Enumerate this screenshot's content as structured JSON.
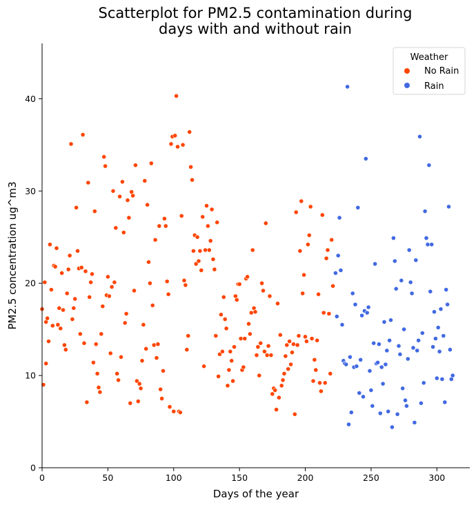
{
  "chart_data": {
    "type": "scatter",
    "title_lines": [
      "Scatterplot for PM2.5 contamination during",
      "days with and without rain"
    ],
    "xlabel": "Days of the year",
    "ylabel": "PM2.5 concentration ug^m3",
    "xlim": [
      0,
      325
    ],
    "ylim": [
      0,
      46
    ],
    "xticks": [
      0,
      50,
      100,
      150,
      200,
      250,
      300
    ],
    "yticks": [
      0,
      10,
      20,
      30,
      40
    ],
    "grid": false,
    "legend": {
      "title": "Weather",
      "placement": "top-right"
    },
    "series": [
      {
        "name": "No Rain",
        "color": "#FF4500",
        "points": [
          [
            0,
            17.2
          ],
          [
            1,
            9.0
          ],
          [
            2,
            20.1
          ],
          [
            3,
            11.3
          ],
          [
            3,
            15.8
          ],
          [
            4,
            16.2
          ],
          [
            5,
            13.7
          ],
          [
            6,
            24.2
          ],
          [
            7,
            19.3
          ],
          [
            8,
            15.4
          ],
          [
            9,
            21.9
          ],
          [
            10,
            21.8
          ],
          [
            11,
            23.8
          ],
          [
            12,
            15.5
          ],
          [
            13,
            17.3
          ],
          [
            14,
            15.1
          ],
          [
            15,
            21.1
          ],
          [
            16,
            17.1
          ],
          [
            17,
            13.3
          ],
          [
            18,
            12.8
          ],
          [
            19,
            18.9
          ],
          [
            20,
            21.5
          ],
          [
            21,
            23.0
          ],
          [
            22,
            35.1
          ],
          [
            23,
            16.1
          ],
          [
            24,
            17.3
          ],
          [
            25,
            18.3
          ],
          [
            26,
            28.2
          ],
          [
            27,
            23.5
          ],
          [
            28,
            21.6
          ],
          [
            29,
            14.5
          ],
          [
            30,
            21.7
          ],
          [
            31,
            36.1
          ],
          [
            32,
            13.5
          ],
          [
            33,
            21.3
          ],
          [
            34,
            7.1
          ],
          [
            35,
            30.9
          ],
          [
            36,
            18.5
          ],
          [
            37,
            20.1
          ],
          [
            38,
            21.0
          ],
          [
            39,
            11.4
          ],
          [
            40,
            27.8
          ],
          [
            41,
            13.4
          ],
          [
            42,
            10.2
          ],
          [
            43,
            8.7
          ],
          [
            44,
            8.2
          ],
          [
            45,
            14.5
          ],
          [
            46,
            17.5
          ],
          [
            47,
            33.7
          ],
          [
            48,
            32.7
          ],
          [
            49,
            18.7
          ],
          [
            50,
            20.7
          ],
          [
            51,
            18.6
          ],
          [
            52,
            12.4
          ],
          [
            53,
            19.6
          ],
          [
            54,
            30.0
          ],
          [
            55,
            20.1
          ],
          [
            56,
            26.0
          ],
          [
            57,
            10.2
          ],
          [
            58,
            9.5
          ],
          [
            59,
            29.4
          ],
          [
            60,
            12.0
          ],
          [
            61,
            31.0
          ],
          [
            62,
            25.5
          ],
          [
            63,
            15.7
          ],
          [
            64,
            16.7
          ],
          [
            65,
            29.0
          ],
          [
            66,
            27.1
          ],
          [
            67,
            7.0
          ],
          [
            68,
            29.9
          ],
          [
            69,
            29.5
          ],
          [
            70,
            19.2
          ],
          [
            71,
            32.8
          ],
          [
            72,
            9.4
          ],
          [
            73,
            7.2
          ],
          [
            74,
            9.1
          ],
          [
            75,
            8.6
          ],
          [
            76,
            11.6
          ],
          [
            77,
            15.5
          ],
          [
            78,
            31.1
          ],
          [
            79,
            12.9
          ],
          [
            80,
            28.5
          ],
          [
            81,
            22.3
          ],
          [
            82,
            20.0
          ],
          [
            83,
            33.0
          ],
          [
            84,
            17.6
          ],
          [
            85,
            13.3
          ],
          [
            86,
            24.7
          ],
          [
            87,
            11.9
          ],
          [
            88,
            13.4
          ],
          [
            89,
            26.2
          ],
          [
            90,
            8.5
          ],
          [
            91,
            7.5
          ],
          [
            92,
            10.5
          ],
          [
            93,
            27.0
          ],
          [
            94,
            26.2
          ],
          [
            95,
            20.2
          ],
          [
            96,
            18.8
          ],
          [
            97,
            6.6
          ],
          [
            98,
            35.1
          ],
          [
            99,
            35.9
          ],
          [
            100,
            6.1
          ],
          [
            101,
            36.0
          ],
          [
            102,
            40.3
          ],
          [
            103,
            34.8
          ],
          [
            104,
            6.1
          ],
          [
            105,
            6.0
          ],
          [
            106,
            27.3
          ],
          [
            107,
            35.0
          ],
          [
            108,
            20.3
          ],
          [
            109,
            19.8
          ],
          [
            110,
            12.8
          ],
          [
            111,
            14.3
          ],
          [
            112,
            36.4
          ],
          [
            113,
            32.6
          ],
          [
            114,
            31.2
          ],
          [
            115,
            23.5
          ],
          [
            116,
            25.2
          ],
          [
            117,
            22.1
          ],
          [
            118,
            25.0
          ],
          [
            119,
            22.4
          ],
          [
            120,
            23.5
          ],
          [
            121,
            21.4
          ],
          [
            122,
            27.2
          ],
          [
            123,
            11.0
          ],
          [
            124,
            23.6
          ],
          [
            125,
            28.4
          ],
          [
            126,
            26.2
          ],
          [
            127,
            23.6
          ],
          [
            128,
            24.6
          ],
          [
            129,
            28.0
          ],
          [
            130,
            22.6
          ],
          [
            131,
            21.5
          ],
          [
            132,
            14.3
          ],
          [
            133,
            26.6
          ],
          [
            134,
            9.9
          ],
          [
            135,
            12.3
          ],
          [
            136,
            16.6
          ],
          [
            137,
            12.6
          ],
          [
            138,
            18.5
          ],
          [
            139,
            16.1
          ],
          [
            140,
            15.1
          ],
          [
            141,
            8.9
          ],
          [
            142,
            10.6
          ],
          [
            143,
            12.6
          ],
          [
            144,
            11.6
          ],
          [
            145,
            9.4
          ],
          [
            146,
            13.1
          ],
          [
            147,
            18.6
          ],
          [
            148,
            18.2
          ],
          [
            149,
            19.9
          ],
          [
            150,
            19.9
          ],
          [
            151,
            14.0
          ],
          [
            152,
            10.6
          ],
          [
            153,
            10.9
          ],
          [
            154,
            14.0
          ],
          [
            155,
            20.5
          ],
          [
            156,
            20.7
          ],
          [
            157,
            15.6
          ],
          [
            158,
            14.5
          ],
          [
            159,
            16.8
          ],
          [
            160,
            23.6
          ],
          [
            161,
            17.3
          ],
          [
            162,
            16.9
          ],
          [
            163,
            12.2
          ],
          [
            164,
            13.1
          ],
          [
            165,
            10.0
          ],
          [
            166,
            13.5
          ],
          [
            167,
            20.0
          ],
          [
            168,
            19.2
          ],
          [
            169,
            12.6
          ],
          [
            170,
            26.5
          ],
          [
            171,
            12.2
          ],
          [
            172,
            13.2
          ],
          [
            173,
            18.6
          ],
          [
            174,
            12.2
          ],
          [
            175,
            8.0
          ],
          [
            176,
            8.6
          ],
          [
            177,
            8.4
          ],
          [
            178,
            6.3
          ],
          [
            179,
            17.8
          ],
          [
            180,
            7.6
          ],
          [
            181,
            14.4
          ],
          [
            182,
            8.9
          ],
          [
            183,
            9.5
          ],
          [
            184,
            10.2
          ],
          [
            185,
            12.1
          ],
          [
            186,
            13.3
          ],
          [
            187,
            10.7
          ],
          [
            188,
            13.7
          ],
          [
            189,
            11.2
          ],
          [
            190,
            12.5
          ],
          [
            191,
            13.4
          ],
          [
            192,
            5.8
          ],
          [
            193,
            27.7
          ],
          [
            194,
            13.3
          ],
          [
            195,
            14.3
          ],
          [
            196,
            23.5
          ],
          [
            197,
            28.9
          ],
          [
            198,
            18.9
          ],
          [
            199,
            20.9
          ],
          [
            200,
            14.2
          ],
          [
            201,
            13.7
          ],
          [
            202,
            24.2
          ],
          [
            203,
            25.2
          ],
          [
            204,
            28.3
          ],
          [
            205,
            14.0
          ],
          [
            206,
            9.4
          ],
          [
            207,
            11.7
          ],
          [
            208,
            10.6
          ],
          [
            209,
            13.8
          ],
          [
            210,
            18.8
          ],
          [
            211,
            9.2
          ],
          [
            212,
            8.3
          ],
          [
            213,
            27.4
          ],
          [
            214,
            16.8
          ],
          [
            215,
            9.2
          ],
          [
            216,
            22.7
          ],
          [
            217,
            23.6
          ],
          [
            218,
            16.7
          ],
          [
            219,
            10.2
          ],
          [
            220,
            24.7
          ],
          [
            221,
            19.7
          ]
        ]
      },
      {
        "name": "Rain",
        "color": "#4169E1",
        "points": [
          [
            223,
            21.1
          ],
          [
            224,
            16.4
          ],
          [
            225,
            23.0
          ],
          [
            226,
            27.1
          ],
          [
            227,
            21.4
          ],
          [
            228,
            15.5
          ],
          [
            229,
            11.6
          ],
          [
            230,
            11.3
          ],
          [
            231,
            11.2
          ],
          [
            232,
            41.3
          ],
          [
            233,
            4.7
          ],
          [
            234,
            12.0
          ],
          [
            235,
            6.0
          ],
          [
            236,
            18.9
          ],
          [
            237,
            10.9
          ],
          [
            238,
            17.7
          ],
          [
            239,
            11.0
          ],
          [
            240,
            28.2
          ],
          [
            241,
            8.1
          ],
          [
            242,
            11.7
          ],
          [
            243,
            16.5
          ],
          [
            244,
            7.7
          ],
          [
            245,
            17.0
          ],
          [
            246,
            33.5
          ],
          [
            247,
            16.8
          ],
          [
            248,
            17.4
          ],
          [
            249,
            10.5
          ],
          [
            250,
            8.4
          ],
          [
            251,
            6.7
          ],
          [
            252,
            13.5
          ],
          [
            253,
            22.1
          ],
          [
            254,
            11.3
          ],
          [
            255,
            11.4
          ],
          [
            256,
            13.4
          ],
          [
            257,
            5.9
          ],
          [
            258,
            10.9
          ],
          [
            259,
            9.1
          ],
          [
            260,
            15.8
          ],
          [
            261,
            11.2
          ],
          [
            262,
            12.7
          ],
          [
            263,
            6.1
          ],
          [
            264,
            13.8
          ],
          [
            265,
            16.0
          ],
          [
            266,
            4.4
          ],
          [
            267,
            24.9
          ],
          [
            268,
            22.4
          ],
          [
            269,
            19.4
          ],
          [
            270,
            5.8
          ],
          [
            271,
            13.2
          ],
          [
            272,
            12.3
          ],
          [
            273,
            20.3
          ],
          [
            274,
            8.6
          ],
          [
            275,
            15.0
          ],
          [
            276,
            7.3
          ],
          [
            277,
            6.7
          ],
          [
            278,
            11.8
          ],
          [
            279,
            23.6
          ],
          [
            280,
            20.1
          ],
          [
            281,
            18.9
          ],
          [
            282,
            13.0
          ],
          [
            283,
            4.9
          ],
          [
            284,
            22.5
          ],
          [
            285,
            12.7
          ],
          [
            286,
            13.8
          ],
          [
            287,
            35.9
          ],
          [
            288,
            7.0
          ],
          [
            289,
            14.6
          ],
          [
            290,
            9.2
          ],
          [
            291,
            27.8
          ],
          [
            292,
            24.9
          ],
          [
            293,
            24.2
          ],
          [
            294,
            32.8
          ],
          [
            295,
            19.1
          ],
          [
            296,
            24.2
          ],
          [
            297,
            13.1
          ],
          [
            298,
            16.9
          ],
          [
            299,
            14.0
          ],
          [
            300,
            9.7
          ],
          [
            301,
            15.2
          ],
          [
            302,
            12.6
          ],
          [
            303,
            17.2
          ],
          [
            304,
            9.6
          ],
          [
            305,
            14.3
          ],
          [
            306,
            7.1
          ],
          [
            307,
            19.3
          ],
          [
            308,
            17.7
          ],
          [
            309,
            28.3
          ],
          [
            310,
            12.8
          ],
          [
            311,
            9.6
          ],
          [
            312,
            10.0
          ]
        ]
      }
    ]
  }
}
